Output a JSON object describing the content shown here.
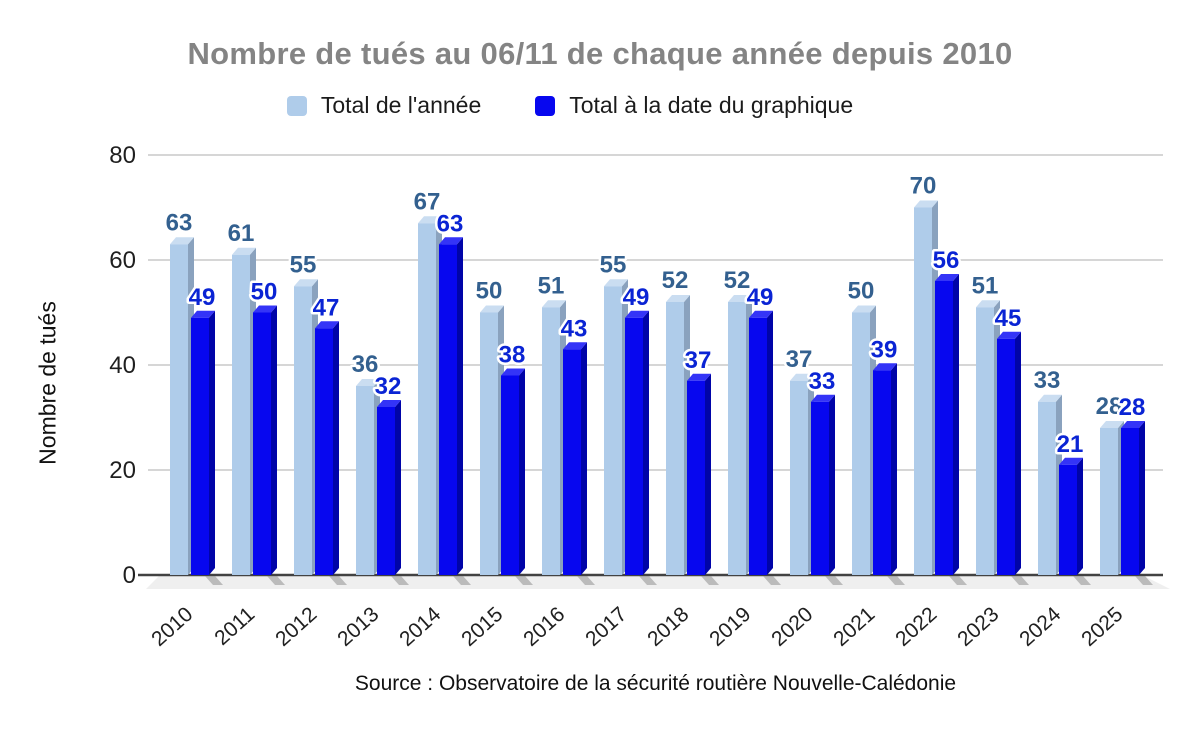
{
  "header": {
    "title": "Nombre de tués au 06/11 de chaque année depuis 2010",
    "title_color": "#848484"
  },
  "legend": {
    "items": [
      {
        "label": "Total de l'année",
        "color": "#AFCCEA"
      },
      {
        "label": "Total à la date du graphique",
        "color": "#0707EF"
      }
    ]
  },
  "axes": {
    "y_title": "Nombre de tués",
    "yticks": [
      0,
      20,
      40,
      60,
      80
    ]
  },
  "source": {
    "text": "Source : Observatoire de la sécurité routière Nouvelle-Calédonie"
  },
  "chart_data": {
    "type": "bar",
    "title": "Nombre de tués au 06/11 de chaque année depuis 2010",
    "categories": [
      "2010",
      "2011",
      "2012",
      "2013",
      "2014",
      "2015",
      "2016",
      "2017",
      "2018",
      "2019",
      "2020",
      "2021",
      "2022",
      "2023",
      "2024",
      "2025"
    ],
    "series": [
      {
        "name": "Total de l'année",
        "color": "#AFCCEA",
        "color_top": "#CADDF1",
        "color_side": "#8AA2BE",
        "label_color": "#33608F",
        "values": [
          63,
          61,
          55,
          36,
          67,
          50,
          51,
          55,
          52,
          52,
          37,
          50,
          70,
          51,
          33,
          28
        ]
      },
      {
        "name": "Total à la date du graphique",
        "color": "#0707EF",
        "color_top": "#3434F7",
        "color_side": "#0004A8",
        "label_color": "#0A24D4",
        "values": [
          49,
          50,
          47,
          32,
          63,
          38,
          43,
          49,
          37,
          49,
          33,
          39,
          56,
          45,
          21,
          28
        ]
      }
    ],
    "xlabel": "",
    "ylabel": "Nombre de tués",
    "ylim": [
      0,
      80
    ],
    "grid": true,
    "legend_position": "top",
    "effect_3d": true,
    "value_labels": true
  }
}
